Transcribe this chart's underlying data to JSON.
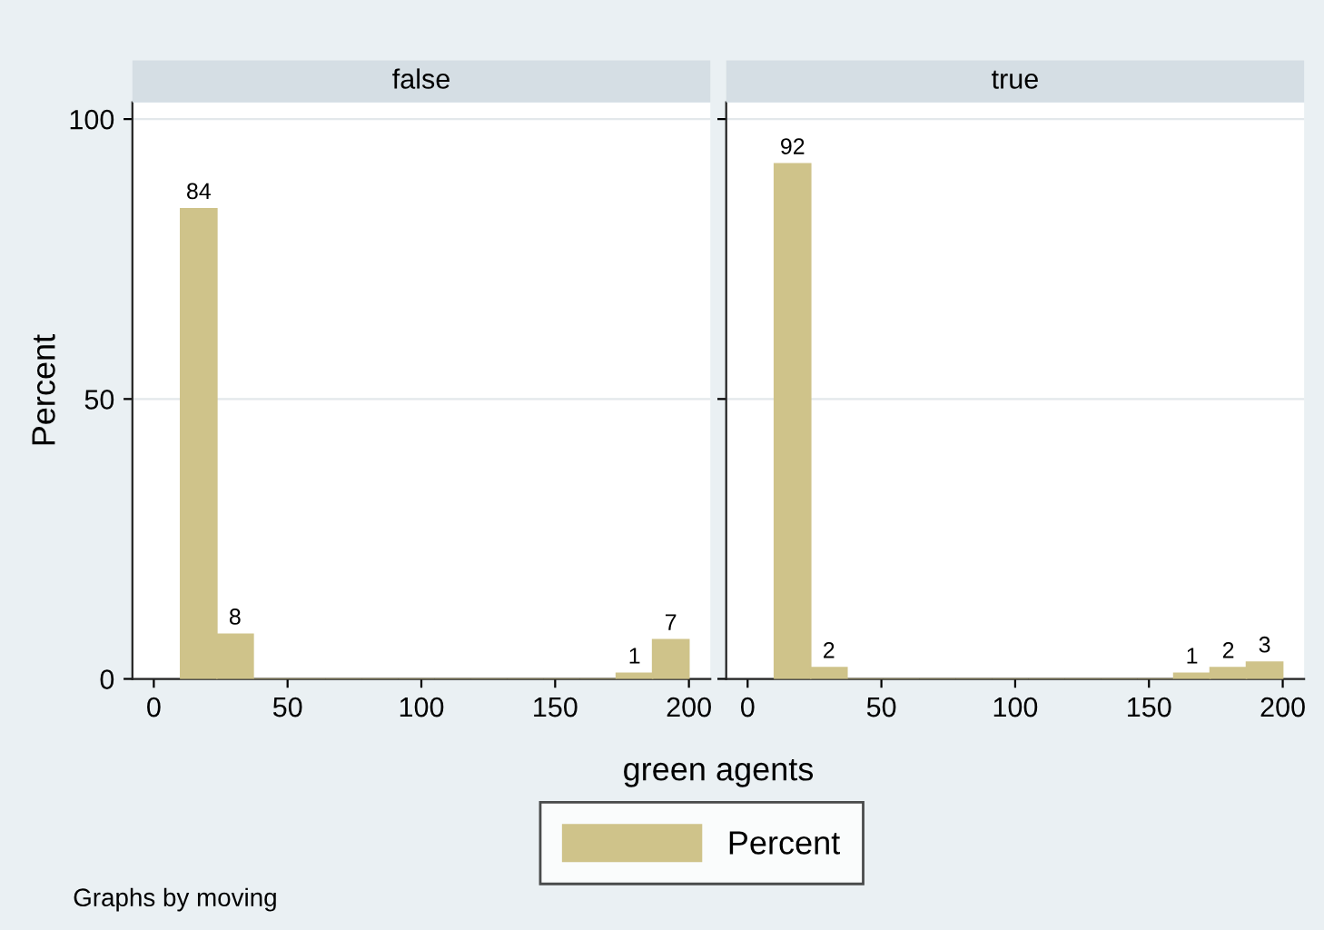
{
  "chart_data": [
    {
      "type": "histogram",
      "title": "false",
      "xlabel": "green agents",
      "ylabel": "Percent",
      "bins": [
        10,
        23.571,
        37.143,
        50.714,
        64.286,
        77.857,
        91.429,
        105,
        118.571,
        132.143,
        145.714,
        159.286,
        172.857,
        186.429,
        200
      ],
      "series": [
        {
          "name": "Percent",
          "color": "#cfc38a",
          "values": [
            84,
            8,
            0,
            0,
            0,
            0,
            0,
            0,
            0,
            0,
            0,
            0,
            1,
            7
          ]
        }
      ],
      "value_labels": [
        "84",
        "8",
        null,
        null,
        null,
        null,
        null,
        null,
        null,
        null,
        null,
        null,
        "1",
        "7"
      ],
      "xlim": [
        -8,
        208
      ],
      "xticks": [
        0,
        50,
        100,
        150,
        200
      ],
      "ylim": [
        0,
        103
      ],
      "yticks": [
        0,
        50,
        100
      ],
      "grid": "y",
      "legend": "bottom",
      "annotations": [
        "Graphs by moving"
      ]
    },
    {
      "type": "histogram",
      "title": "true",
      "bins": [
        10,
        23.571,
        37.143,
        50.714,
        64.286,
        77.857,
        91.429,
        105,
        118.571,
        132.143,
        145.714,
        159.286,
        172.857,
        186.429,
        200
      ],
      "series": [
        {
          "color": "#cfc38a",
          "values": [
            92,
            2,
            0,
            0,
            0,
            0,
            0,
            0,
            0,
            0,
            0,
            1,
            2,
            3
          ]
        }
      ],
      "value_labels": [
        "92",
        "2",
        null,
        null,
        null,
        null,
        null,
        null,
        null,
        null,
        null,
        "1",
        "2",
        "3"
      ],
      "xlim": [
        -8,
        208
      ],
      "xticks": [
        0,
        50,
        100,
        150,
        200
      ],
      "ylim": [
        0,
        103
      ],
      "yticks": [
        0,
        50,
        100
      ],
      "grid": "y",
      "tick_labels": "x"
    }
  ]
}
